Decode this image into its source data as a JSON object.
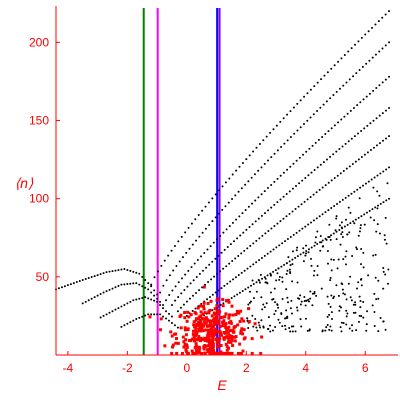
{
  "chart_data": {
    "type": "scatter",
    "title": "",
    "xlabel": "E",
    "ylabel": "⟨n⟩",
    "xlim": [
      -4.4,
      6.9
    ],
    "ylim": [
      0,
      222
    ],
    "x_ticks": [
      -4,
      -2,
      0,
      2,
      4,
      6
    ],
    "y_ticks": [
      50,
      100,
      150,
      200
    ],
    "grid": false,
    "colors": {
      "axis": "#ff0000",
      "tick_label": "#ff0000",
      "points": "#000000",
      "cluster": "#ff0000"
    },
    "vertical_lines": [
      {
        "x": -1.45,
        "color": "#008000"
      },
      {
        "x": -0.98,
        "color": "#ff00ff"
      },
      {
        "x": 1.02,
        "color": "#0000ff"
      },
      {
        "x": 1.1,
        "color": "#8000ff"
      }
    ],
    "curves": [
      {
        "x_start": -1.2,
        "x_end": 6.8,
        "y_start": 45,
        "y_end": 220,
        "shape": 0.85
      },
      {
        "x_start": -0.9,
        "x_end": 6.8,
        "y_start": 40,
        "y_end": 200,
        "shape": 0.85
      },
      {
        "x_start": -0.7,
        "x_end": 6.8,
        "y_start": 35,
        "y_end": 178,
        "shape": 0.88
      },
      {
        "x_start": -0.5,
        "x_end": 6.8,
        "y_start": 32,
        "y_end": 158,
        "shape": 0.9
      },
      {
        "x_start": -0.3,
        "x_end": 6.8,
        "y_start": 28,
        "y_end": 140,
        "shape": 0.92
      },
      {
        "x_start": 0.0,
        "x_end": 6.8,
        "y_start": 25,
        "y_end": 120,
        "shape": 0.95
      },
      {
        "x_start": 0.3,
        "x_end": 6.8,
        "y_start": 22,
        "y_end": 100,
        "shape": 1.0
      }
    ],
    "low_curves": [
      [
        [
          -4.4,
          42
        ],
        [
          -3.5,
          48
        ],
        [
          -2.7,
          53
        ],
        [
          -2.1,
          55
        ],
        [
          -1.6,
          52
        ],
        [
          -1.2,
          44
        ],
        [
          -0.9,
          36
        ]
      ],
      [
        [
          -3.5,
          33
        ],
        [
          -2.8,
          40
        ],
        [
          -2.2,
          45
        ],
        [
          -1.7,
          46
        ],
        [
          -1.3,
          42
        ],
        [
          -1.0,
          36
        ],
        [
          -0.7,
          30
        ]
      ],
      [
        [
          -2.9,
          24
        ],
        [
          -2.3,
          30
        ],
        [
          -1.8,
          35
        ],
        [
          -1.4,
          37
        ],
        [
          -1.0,
          34
        ],
        [
          -0.7,
          28
        ],
        [
          -0.4,
          23
        ]
      ],
      [
        [
          -2.2,
          18
        ],
        [
          -1.7,
          23
        ],
        [
          -1.3,
          26
        ],
        [
          -0.9,
          26
        ],
        [
          -0.6,
          22
        ],
        [
          -0.2,
          16
        ]
      ]
    ],
    "scatter_region": {
      "x_min": 2.0,
      "x_max": 6.8,
      "y_min": 15,
      "y_max": 115,
      "count": 300
    },
    "cluster": {
      "x_center": 0.85,
      "y_center": 14,
      "x_spread": 0.6,
      "y_spread": 9,
      "count": 380
    }
  }
}
